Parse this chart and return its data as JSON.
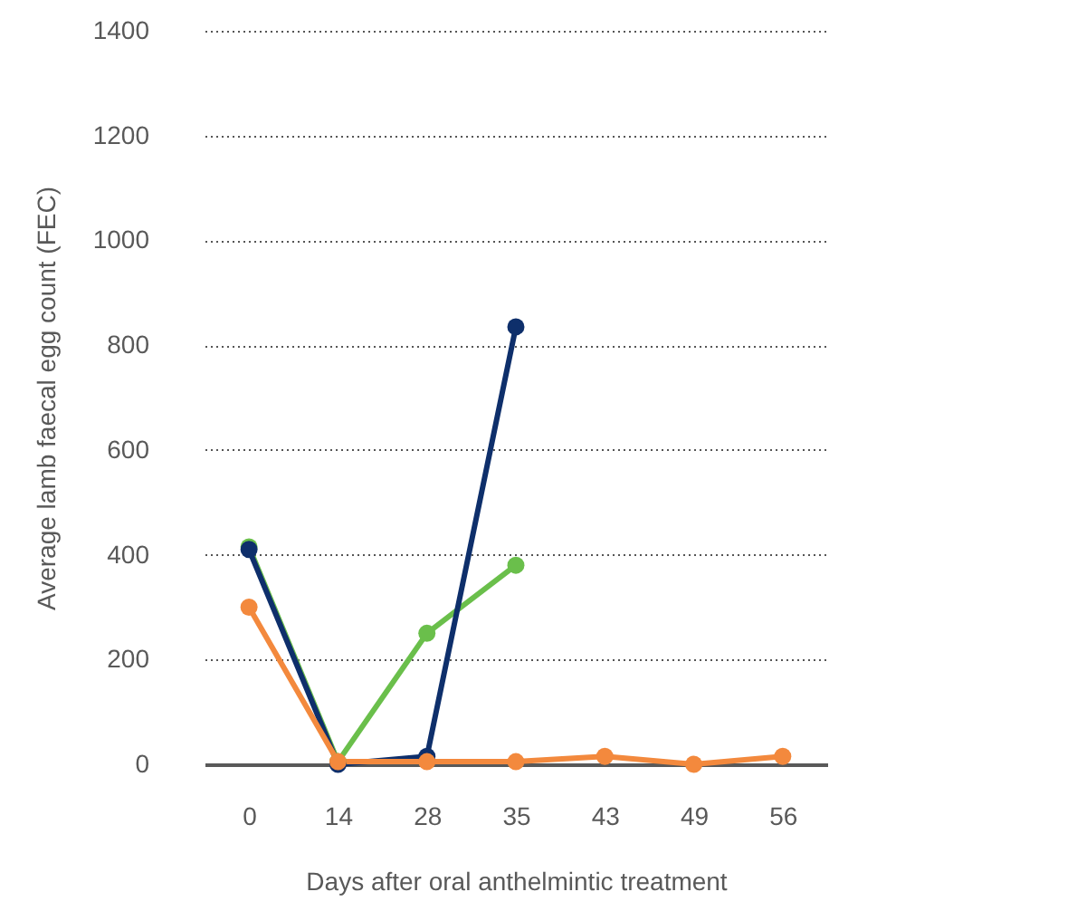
{
  "chart_data": {
    "type": "line",
    "xlabel": "Days after oral anthelmintic treatment",
    "ylabel": "Average lamb faecal egg count (FEC)",
    "categories": [
      "0",
      "14",
      "28",
      "35",
      "43",
      "49",
      "56"
    ],
    "series": [
      {
        "color": "#6abf4b",
        "values": [
          415,
          5,
          250,
          380,
          null,
          null,
          null
        ]
      },
      {
        "color": "#0e2f6b",
        "values": [
          410,
          0,
          15,
          835,
          null,
          null,
          null
        ]
      },
      {
        "color": "#f3893d",
        "values": [
          300,
          5,
          5,
          5,
          15,
          0,
          15
        ]
      }
    ],
    "ylim": [
      0,
      1400
    ],
    "yticks": [
      0,
      200,
      400,
      600,
      800,
      1000,
      1200,
      1400
    ],
    "grid": "y",
    "marker": "circle",
    "line_style": "solid"
  }
}
